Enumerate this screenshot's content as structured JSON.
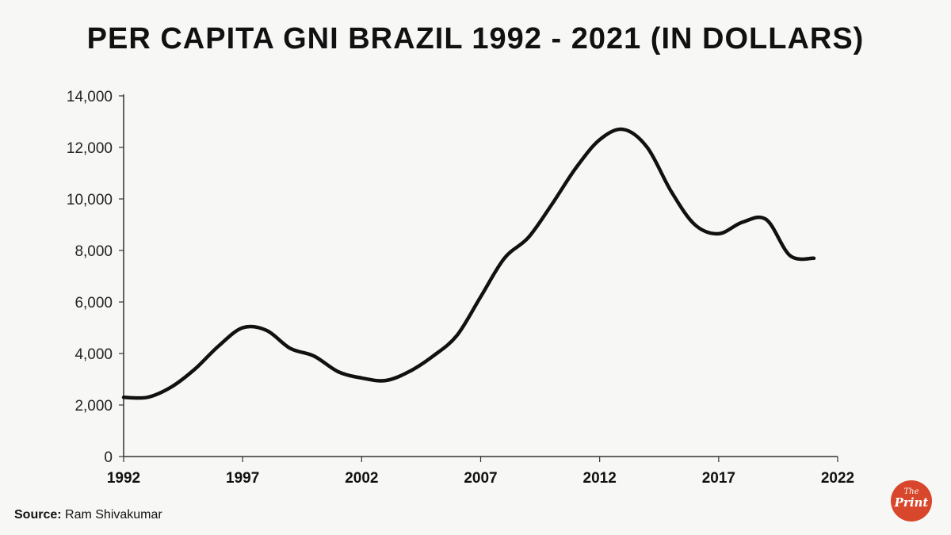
{
  "chart_data": {
    "type": "line",
    "title": "PER CAPITA GNI BRAZIL 1992 - 2021 (IN DOLLARS)",
    "xlabel": "",
    "ylabel": "",
    "xlim": [
      1992,
      2022
    ],
    "ylim": [
      0,
      14000
    ],
    "x_ticks": [
      1992,
      1997,
      2002,
      2007,
      2012,
      2017,
      2022
    ],
    "x_tick_labels": [
      "1992",
      "1997",
      "2002",
      "2007",
      "2012",
      "2017",
      "2022"
    ],
    "y_ticks": [
      0,
      2000,
      4000,
      6000,
      8000,
      10000,
      12000,
      14000
    ],
    "y_tick_labels": [
      "0",
      "2,000",
      "4,000",
      "6,000",
      "8,000",
      "10,000",
      "12,000",
      "14,000"
    ],
    "grid": false,
    "series": [
      {
        "name": "Per capita GNI",
        "x": [
          1992,
          1993,
          1994,
          1995,
          1996,
          1997,
          1998,
          1999,
          2000,
          2001,
          2002,
          2003,
          2004,
          2005,
          2006,
          2007,
          2008,
          2009,
          2010,
          2011,
          2012,
          2013,
          2014,
          2015,
          2016,
          2017,
          2018,
          2019,
          2020,
          2021
        ],
        "values": [
          2300,
          2300,
          2700,
          3400,
          4300,
          5000,
          4900,
          4200,
          3900,
          3300,
          3050,
          2950,
          3300,
          3900,
          4700,
          6200,
          7700,
          8500,
          9800,
          11200,
          12300,
          12700,
          12000,
          10300,
          9000,
          8650,
          9100,
          9200,
          7800,
          7700
        ]
      }
    ]
  },
  "source": {
    "label": "Source:",
    "text": "Ram Shivakumar"
  },
  "logo": {
    "the": "The",
    "print": "Print",
    "color": "#d8462b"
  }
}
